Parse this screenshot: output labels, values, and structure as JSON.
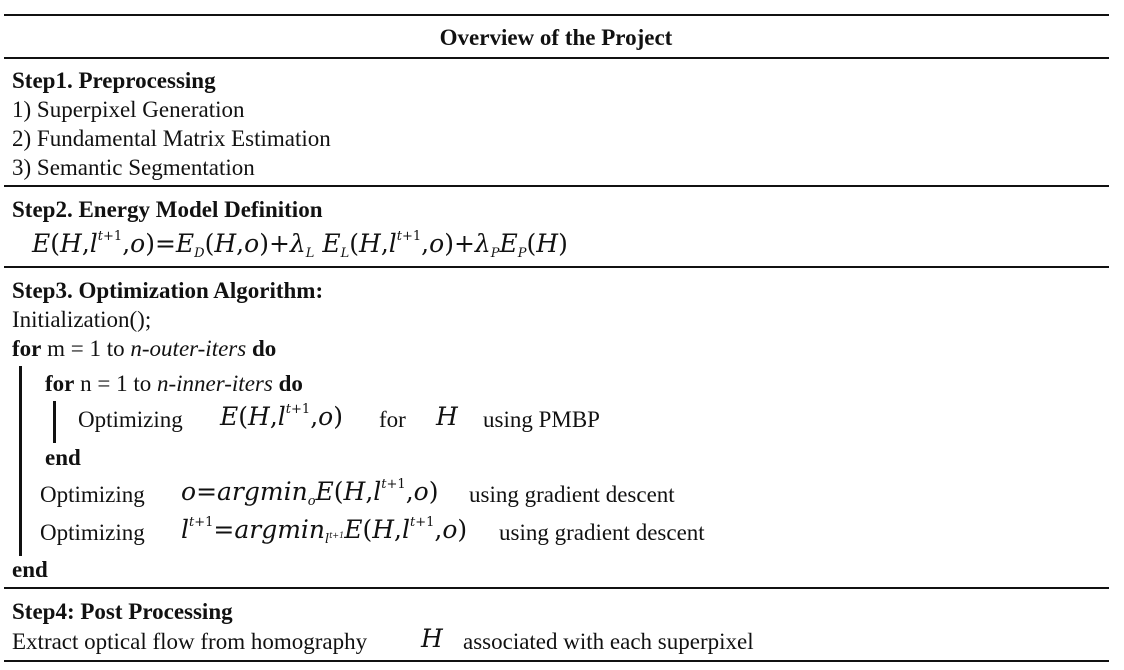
{
  "title": "Overview of the Project",
  "step1": {
    "heading": "Step1. Preprocessing",
    "items": [
      "1) Superpixel Generation",
      "2) Fundamental Matrix Estimation",
      "3) Semantic Segmentation"
    ]
  },
  "step2": {
    "heading": "Step2. Energy Model Definition",
    "equation": "E(H,l^{t+1},o)=E_D(H,o)+λ_L E_L(H,l^{t+1},o)+λ_P E_P(H)"
  },
  "step3": {
    "heading": "Step3. Optimization Algorithm:",
    "init": "Initialization();",
    "outer_for": {
      "kw_for": "for",
      "text": " m = 1 to ",
      "var": "n-outer-iters",
      "kw_do": "do"
    },
    "inner_for": {
      "kw_for": "for",
      "text": " n = 1 to ",
      "var": "n-inner-iters",
      "kw_do": "do"
    },
    "inner_body": {
      "prefix": "Optimizing",
      "expr": "E(H,l^{t+1},o)",
      "mid": "for",
      "var": "H",
      "suffix": "using PMBP"
    },
    "inner_end": "end",
    "opt_o": {
      "prefix": "Optimizing",
      "expr": "o=argmin_o E(H,l^{t+1},o)",
      "suffix": "using gradient descent"
    },
    "opt_l": {
      "prefix": "Optimizing",
      "expr": "l^{t+1}=argmin_{l^{t+1}} E(H,l^{t+1},o)",
      "suffix": "using gradient descent"
    },
    "outer_end": "end"
  },
  "step4": {
    "heading": "Step4: Post Processing",
    "line_prefix": "Extract optical flow from homography",
    "var": "H",
    "line_suffix": "associated with each superpixel"
  }
}
